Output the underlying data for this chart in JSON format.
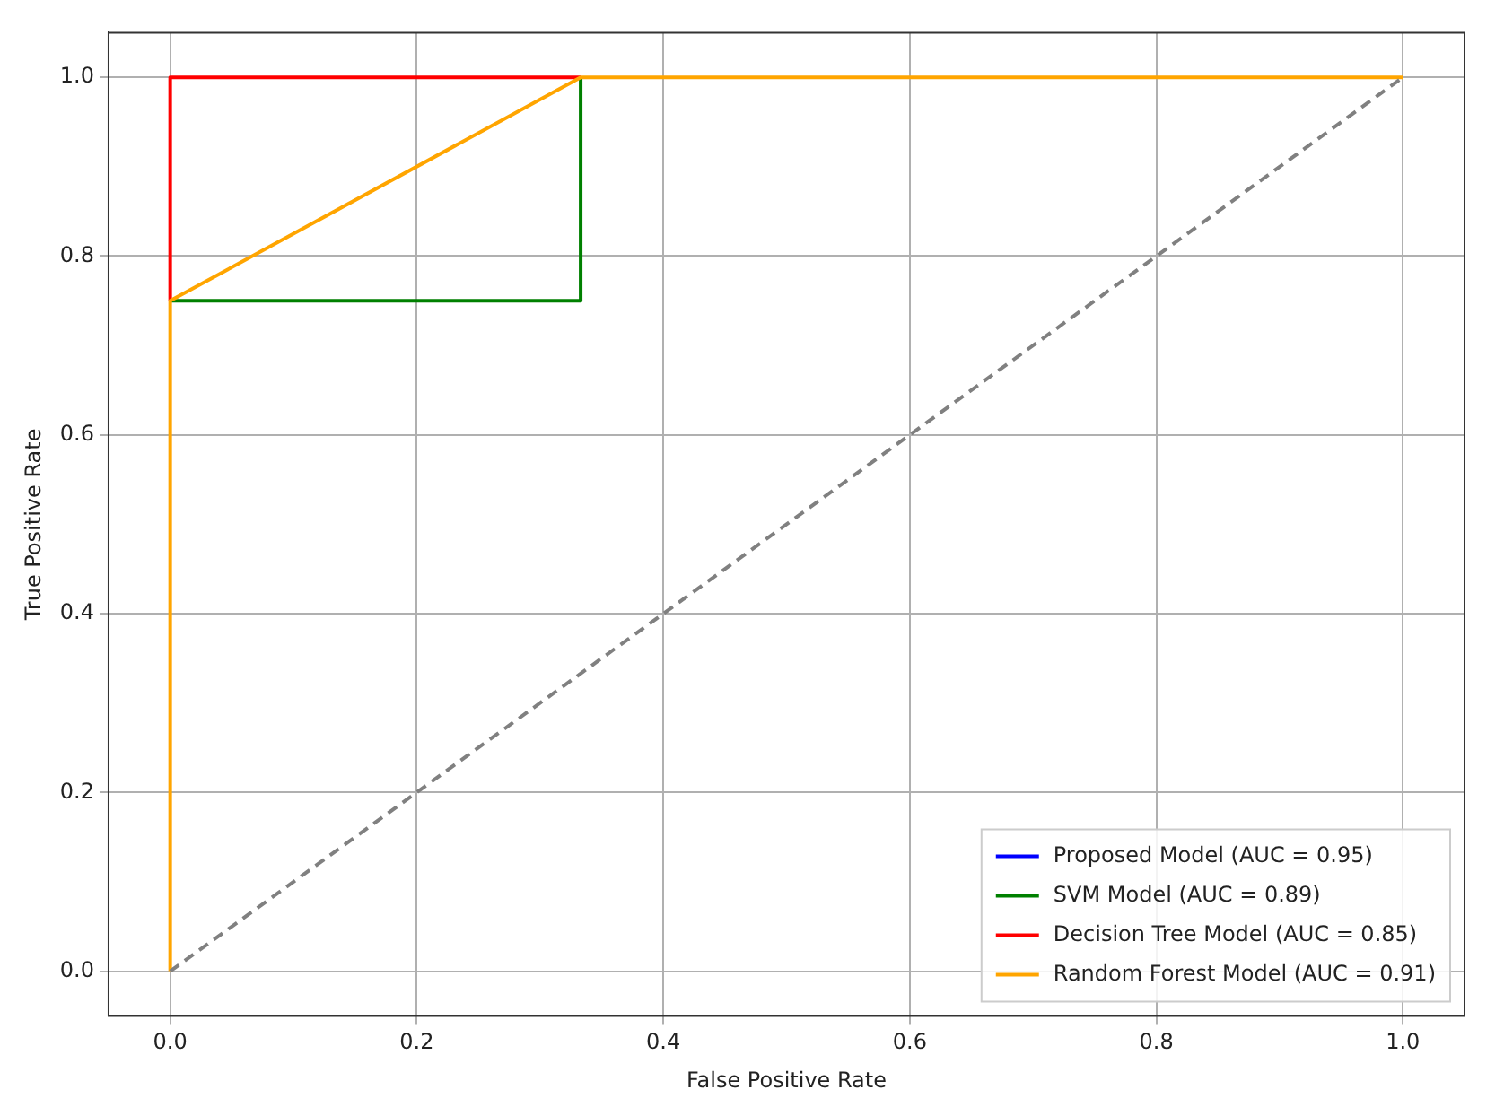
{
  "chart_data": {
    "type": "line",
    "xlabel": "False Positive Rate",
    "ylabel": "True Positive Rate",
    "xlim": [
      -0.05,
      1.05
    ],
    "ylim": [
      -0.05,
      1.05
    ],
    "xticks": [
      {
        "value": 0,
        "label": "0.0"
      },
      {
        "value": 0.2,
        "label": "0.2"
      },
      {
        "value": 0.4,
        "label": "0.4"
      },
      {
        "value": 0.6,
        "label": "0.6"
      },
      {
        "value": 0.8,
        "label": "0.8"
      },
      {
        "value": 1,
        "label": "1.0"
      }
    ],
    "yticks": [
      {
        "value": 0,
        "label": "0.0"
      },
      {
        "value": 0.2,
        "label": "0.2"
      },
      {
        "value": 0.4,
        "label": "0.4"
      },
      {
        "value": 0.6,
        "label": "0.6"
      },
      {
        "value": 0.8,
        "label": "0.8"
      },
      {
        "value": 1,
        "label": "1.0"
      }
    ],
    "grid": true,
    "legend": "bottom right",
    "marker": "none",
    "series": [
      {
        "name": "Proposed Model (AUC = 0.95)",
        "color": "#0000ff"
      },
      {
        "name": "SVM Model (AUC = 0.89)",
        "color": "#008000",
        "x": [
          0,
          0.333,
          0.333
        ],
        "values": [
          0.75,
          0.75,
          1
        ]
      },
      {
        "name": "Decision Tree Model (AUC = 0.85)",
        "color": "#ff0000",
        "x": [
          0,
          0,
          0.333
        ],
        "values": [
          0.75,
          1,
          1
        ]
      },
      {
        "name": "Random Forest Model (AUC = 0.91)",
        "color": "#ffa500",
        "x": [
          0,
          0,
          0.333,
          1
        ],
        "values": [
          0,
          0.75,
          1,
          1
        ]
      },
      {
        "type": "line",
        "color": "#808080",
        "line_style": "dashed",
        "x": [
          0,
          1
        ],
        "values": [
          0,
          1
        ]
      }
    ]
  }
}
